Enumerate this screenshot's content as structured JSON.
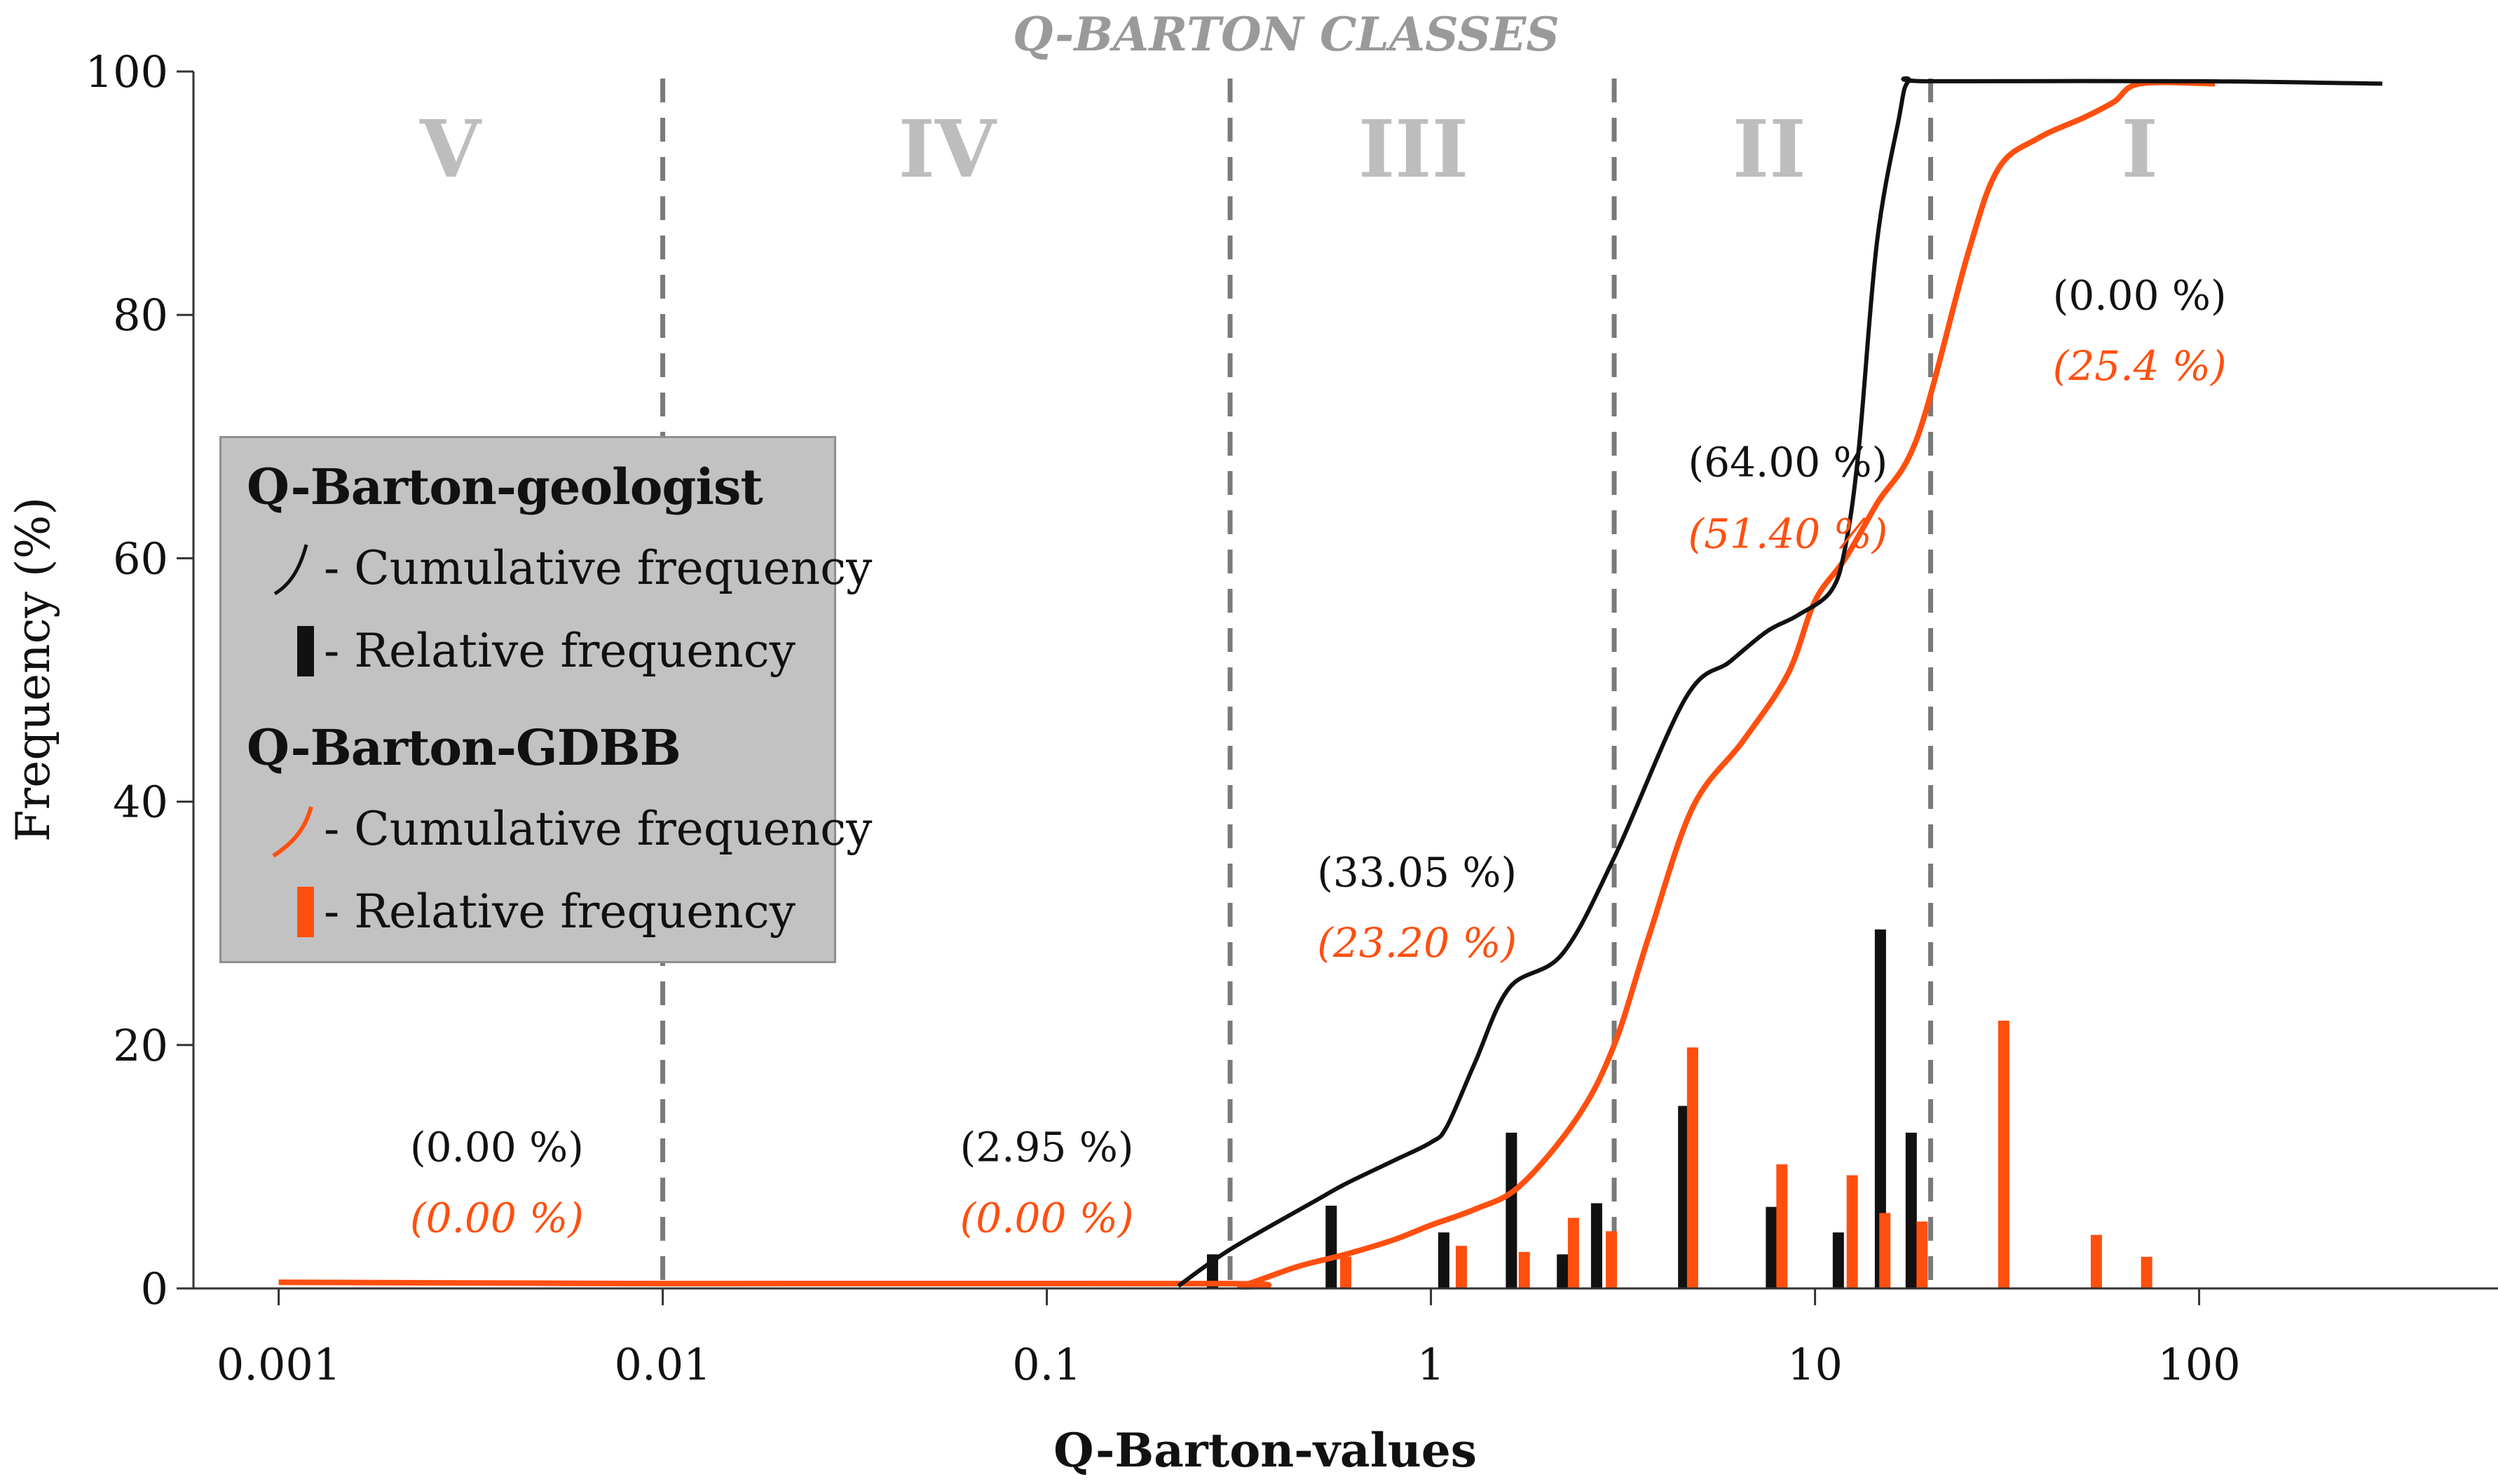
{
  "chart_data": {
    "type": "line+bar",
    "title": "Q-BARTON CLASSES",
    "xlabel": "Q-Barton-values",
    "ylabel": "Frequency (%)",
    "xscale": "log",
    "xlim": [
      0.0006,
      600
    ],
    "ylim": [
      0,
      100
    ],
    "x_ticks": [
      0.001,
      0.01,
      0.1,
      1,
      10,
      100
    ],
    "x_tick_labels": [
      "0.001",
      "0.01",
      "0.1",
      "1",
      "10",
      "100"
    ],
    "y_ticks": [
      0,
      20,
      40,
      60,
      80,
      100
    ],
    "y_tick_labels": [
      "0",
      "20",
      "40",
      "60",
      "80",
      "100"
    ],
    "class_boundaries": [
      0.01,
      0.3,
      3,
      20
    ],
    "classes": [
      {
        "label": "V",
        "x": 0.0028,
        "pct_geologist": "(0.00 %)",
        "pct_gdbb": "(0.00 %)",
        "x_pct": 0.0037,
        "y_pct_geologist": 11.6,
        "y_pct_gdbb": 5.8
      },
      {
        "label": "IV",
        "x": 0.055,
        "pct_geologist": "(2.95 %)",
        "pct_gdbb": "(0.00 %)",
        "x_pct": 0.1,
        "y_pct_geologist": 11.6,
        "y_pct_gdbb": 5.8
      },
      {
        "label": "III",
        "x": 0.9,
        "pct_geologist": "(33.05 %)",
        "pct_gdbb": "(23.20 %)",
        "x_pct": 0.92,
        "y_pct_geologist": 34.2,
        "y_pct_gdbb": 28.4
      },
      {
        "label": "II",
        "x": 7.6,
        "pct_geologist": "(64.00 %)",
        "pct_gdbb": "(51.40 %)",
        "x_pct": 8.5,
        "y_pct_geologist": 67.9,
        "y_pct_gdbb": 62.0
      },
      {
        "label": "I",
        "x": 70,
        "pct_geologist": "(0.00 %)",
        "pct_gdbb": "(25.4 %)",
        "x_pct": 70,
        "y_pct_geologist": 81.6,
        "y_pct_gdbb": 75.8
      }
    ],
    "series": [
      {
        "name": "Q-Barton-geologist Cumulative frequency",
        "kind": "line",
        "color": "#111111",
        "points": [
          [
            0.22,
            0.2
          ],
          [
            0.3,
            3.2
          ],
          [
            0.5,
            7.2
          ],
          [
            0.6,
            8.6
          ],
          [
            0.8,
            10.5
          ],
          [
            1.0,
            12.0
          ],
          [
            1.1,
            13.3
          ],
          [
            1.3,
            18.5
          ],
          [
            1.6,
            24.7
          ],
          [
            2.2,
            27.5
          ],
          [
            3.0,
            35.4
          ],
          [
            4.6,
            48.5
          ],
          [
            6.0,
            51.5
          ],
          [
            7.5,
            54.0
          ],
          [
            9.0,
            55.3
          ],
          [
            11.0,
            57.3
          ],
          [
            12.0,
            61.0
          ],
          [
            13.0,
            69.0
          ],
          [
            14.5,
            86.0
          ],
          [
            16.5,
            96.0
          ],
          [
            17.5,
            99.2
          ],
          [
            20,
            99.2
          ],
          [
            100,
            99.2
          ],
          [
            300,
            99.0
          ]
        ]
      },
      {
        "name": "Q-Barton-GDBB Cumulative frequency",
        "kind": "line",
        "color": "#ff4f0f",
        "points": [
          [
            0.001,
            0.5
          ],
          [
            0.01,
            0.4
          ],
          [
            0.29,
            0.4
          ],
          [
            0.32,
            0.2
          ],
          [
            0.45,
            1.8
          ],
          [
            0.6,
            2.8
          ],
          [
            0.8,
            4.0
          ],
          [
            1.0,
            5.2
          ],
          [
            1.3,
            6.5
          ],
          [
            1.7,
            8.4
          ],
          [
            2.4,
            14.0
          ],
          [
            3.0,
            20.0
          ],
          [
            3.7,
            29.0
          ],
          [
            4.8,
            39.5
          ],
          [
            6.5,
            45.0
          ],
          [
            8.5,
            50.5
          ],
          [
            10.0,
            56.5
          ],
          [
            12.0,
            60.0
          ],
          [
            14.5,
            64.5
          ],
          [
            18.5,
            70.0
          ],
          [
            25.0,
            85.0
          ],
          [
            30.0,
            92.0
          ],
          [
            38.0,
            94.5
          ],
          [
            50.0,
            96.2
          ],
          [
            60.0,
            97.5
          ],
          [
            70.0,
            99.0
          ],
          [
            110.0,
            99.0
          ]
        ]
      },
      {
        "name": "Q-Barton-geologist Relative frequency",
        "kind": "bar",
        "color": "#111111",
        "points": [
          [
            0.27,
            2.8
          ],
          [
            0.55,
            6.8
          ],
          [
            1.08,
            4.6
          ],
          [
            1.62,
            12.8
          ],
          [
            2.2,
            2.8
          ],
          [
            2.7,
            7.0
          ],
          [
            4.55,
            15.0
          ],
          [
            7.7,
            6.7
          ],
          [
            11.5,
            4.6
          ],
          [
            14.8,
            29.5
          ],
          [
            17.8,
            12.8
          ]
        ]
      },
      {
        "name": "Q-Barton-GDBB Relative frequency",
        "kind": "bar",
        "color": "#ff4f0f",
        "points": [
          [
            0.6,
            2.6
          ],
          [
            1.2,
            3.5
          ],
          [
            1.75,
            3.0
          ],
          [
            2.35,
            5.8
          ],
          [
            2.95,
            4.7
          ],
          [
            4.8,
            19.8
          ],
          [
            8.2,
            10.2
          ],
          [
            12.5,
            9.3
          ],
          [
            15.2,
            6.2
          ],
          [
            19.0,
            5.5
          ],
          [
            31.0,
            22.0
          ],
          [
            54.0,
            4.4
          ],
          [
            73.0,
            2.6
          ]
        ]
      }
    ],
    "legend": {
      "placement": "left-middle",
      "groups": [
        {
          "title": "Q-Barton-geologist",
          "items": [
            "- Cumulative frequency",
            "- Relative frequency"
          ],
          "color": "#111111"
        },
        {
          "title": "Q-Barton-GDBB",
          "items": [
            "- Cumulative frequency",
            "- Relative frequency"
          ],
          "color": "#ff4f0f"
        }
      ]
    }
  },
  "colors": {
    "geologist": "#111111",
    "gdbb": "#ff4f0f",
    "class_label": "#bdbdbd",
    "boundary": "#7a7a7a",
    "title": "#9a9a9a"
  }
}
